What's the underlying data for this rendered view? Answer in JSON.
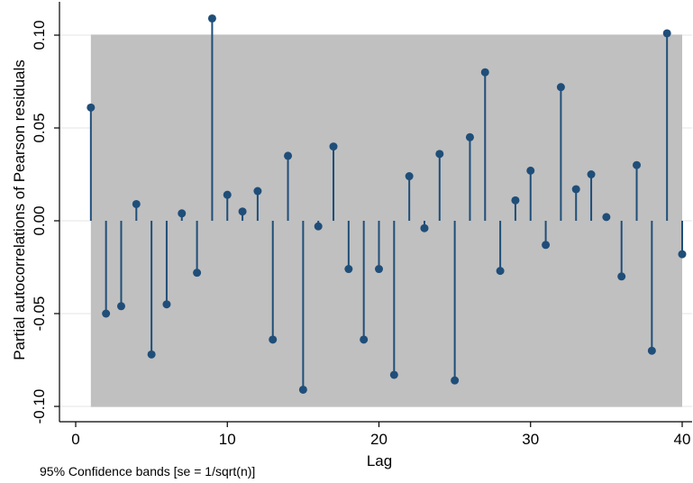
{
  "chart_data": {
    "type": "stem",
    "xlabel": "Lag",
    "ylabel": "Partial autocorrelations of Pearson residuals",
    "note": "95% Confidence bands [se = 1/sqrt(n)]",
    "xlim": [
      0,
      40
    ],
    "ylim": [
      -0.115,
      0.115
    ],
    "xticks": [
      0,
      10,
      20,
      30,
      40
    ],
    "yticks": [
      -0.1,
      -0.05,
      0.0,
      0.05,
      0.1
    ],
    "ytick_labels": [
      "-0.10",
      "-0.05",
      "0.00",
      "0.05",
      "0.10"
    ],
    "confidence_band": [
      -0.1003,
      0.1003
    ],
    "grid": true,
    "colors": {
      "band": "#c0c0c0",
      "stem": "#1f4e79",
      "marker": "#1f4e79",
      "grid": "#e6e6e6"
    },
    "lags": [
      1,
      2,
      3,
      4,
      5,
      6,
      7,
      8,
      9,
      10,
      11,
      12,
      13,
      14,
      15,
      16,
      17,
      18,
      19,
      20,
      21,
      22,
      23,
      24,
      25,
      26,
      27,
      28,
      29,
      30,
      31,
      32,
      33,
      34,
      35,
      36,
      37,
      38,
      39,
      40
    ],
    "values": [
      0.061,
      -0.05,
      -0.046,
      0.009,
      -0.072,
      -0.045,
      0.004,
      -0.028,
      0.109,
      0.014,
      0.005,
      0.016,
      -0.064,
      0.035,
      -0.091,
      -0.003,
      0.04,
      -0.026,
      -0.064,
      -0.026,
      -0.083,
      0.024,
      -0.004,
      0.036,
      -0.086,
      0.045,
      0.08,
      -0.027,
      0.011,
      0.027,
      -0.013,
      0.072,
      0.017,
      0.025,
      0.002,
      -0.03,
      0.03,
      -0.07,
      0.101,
      -0.018
    ]
  }
}
